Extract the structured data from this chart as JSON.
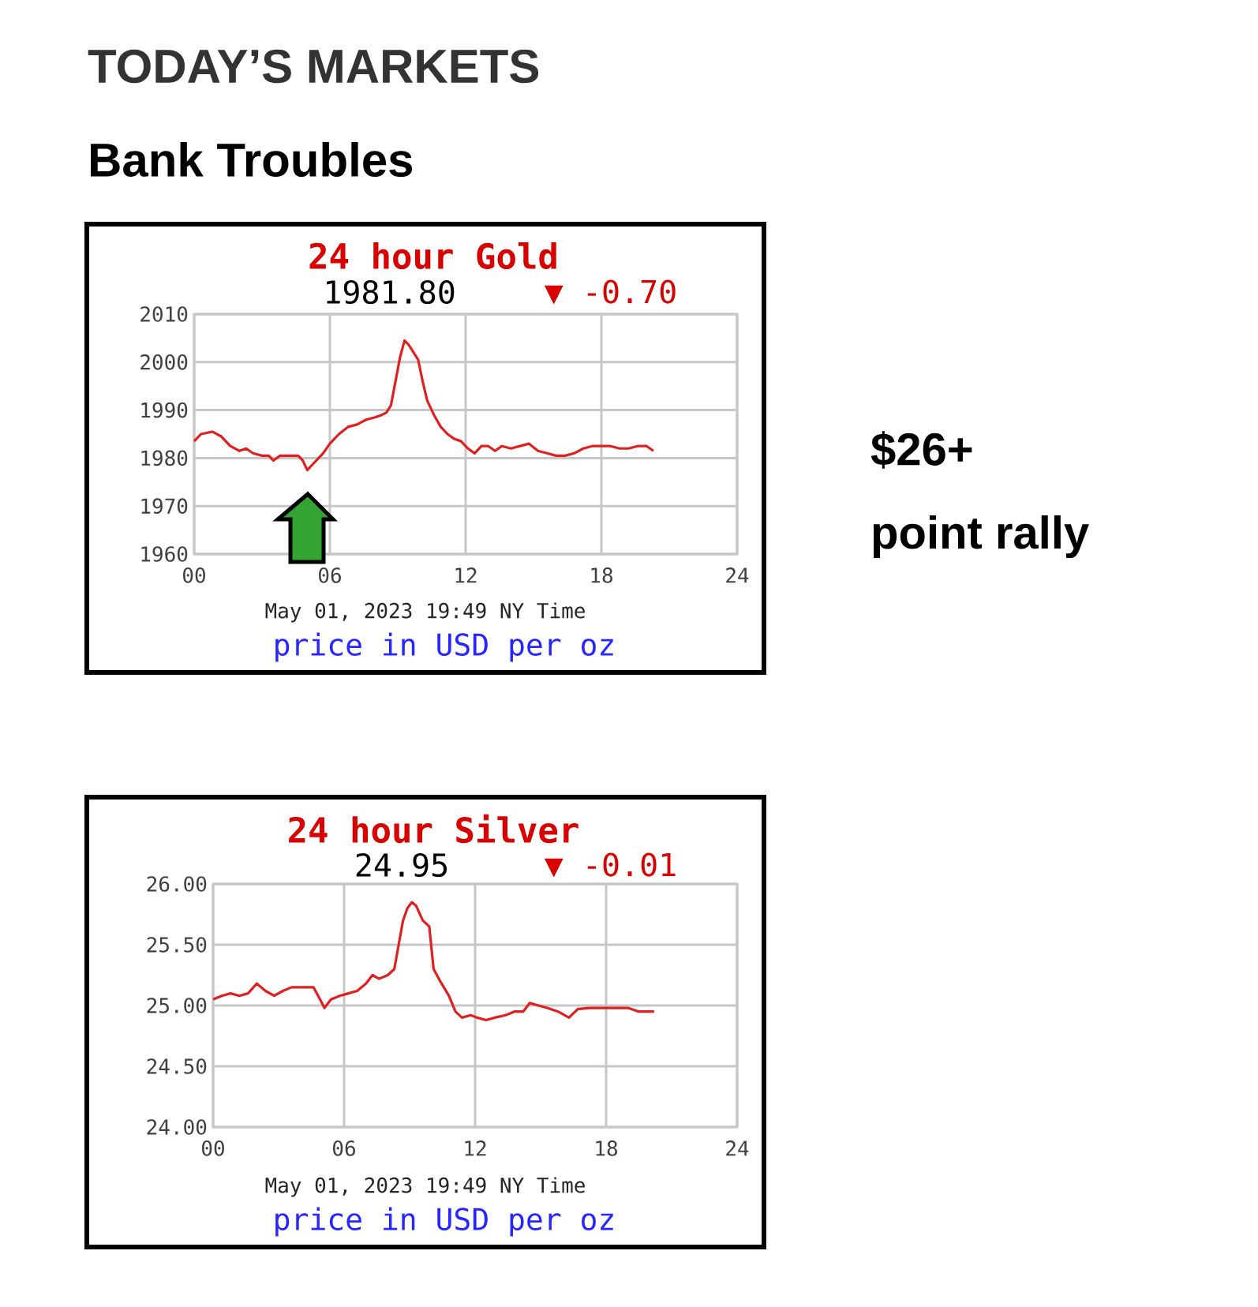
{
  "chart_data": [
    {
      "type": "line",
      "title": "24 hour Gold",
      "xlabel": "May 01, 2023 19:49 NY Time",
      "annotations": [
        "1981.80",
        "▼ -0.70",
        "price in USD per oz",
        "TODAY’S MARKETS",
        "Bank Troubles",
        "$26+",
        "point rally"
      ],
      "x": [
        0,
        0.3,
        0.8,
        1.2,
        1.6,
        2.0,
        2.3,
        2.6,
        3.0,
        3.3,
        3.5,
        3.8,
        4.2,
        4.6,
        4.8,
        5.0,
        5.3,
        5.7,
        6.0,
        6.4,
        6.8,
        7.2,
        7.6,
        8.0,
        8.3,
        8.5,
        8.7,
        8.9,
        9.1,
        9.3,
        9.5,
        9.7,
        9.9,
        10.1,
        10.3,
        10.6,
        10.9,
        11.2,
        11.5,
        11.8,
        12.1,
        12.4,
        12.7,
        13.0,
        13.3,
        13.6,
        14.0,
        14.4,
        14.8,
        15.2,
        15.6,
        16.0,
        16.4,
        16.8,
        17.2,
        17.6,
        18.0,
        18.4,
        18.8,
        19.2,
        19.6,
        20.0,
        20.3
      ],
      "series": [
        {
          "color": "#e02020",
          "values": [
            1983.5,
            1985,
            1985.5,
            1984.5,
            1982.5,
            1981.5,
            1982,
            1981,
            1980.5,
            1980.5,
            1979.5,
            1980.5,
            1980.5,
            1980.5,
            1979.5,
            1977.5,
            1979,
            1981,
            1983,
            1985,
            1986.5,
            1987,
            1988,
            1988.5,
            1989,
            1989.5,
            1991,
            1996,
            2001,
            2004.5,
            2003.5,
            2002,
            2000.5,
            1996,
            1992,
            1989,
            1986.5,
            1985,
            1984,
            1983.5,
            1982,
            1981,
            1982.5,
            1982.5,
            1981.5,
            1982.5,
            1982,
            1982.5,
            1983,
            1981.5,
            1981,
            1980.5,
            1980.5,
            1981,
            1982,
            1982.5,
            1982.5,
            1982.5,
            1982,
            1982,
            1982.5,
            1982.5,
            1981.5
          ]
        }
      ],
      "xlim": [
        0,
        24
      ],
      "xticks": [
        {
          "value": 0,
          "label": "00"
        },
        {
          "value": 6,
          "label": "06"
        },
        {
          "value": 12,
          "label": "12"
        },
        {
          "value": 18,
          "label": "18"
        },
        {
          "value": 24,
          "label": "24"
        }
      ],
      "ylim": [
        1960,
        2010
      ],
      "yticks": [
        1960,
        1970,
        1980,
        1990,
        2000,
        2010
      ],
      "grid": true,
      "marker": "none",
      "line_style": "solid"
    },
    {
      "type": "line",
      "title": "24 hour Silver",
      "xlabel": "May 01, 2023 19:49 NY Time",
      "annotations": [
        "24.95",
        "▼ -0.01",
        "price in USD per oz"
      ],
      "x": [
        0,
        0.4,
        0.8,
        1.2,
        1.6,
        2.0,
        2.4,
        2.8,
        3.2,
        3.6,
        4.0,
        4.6,
        4.9,
        5.1,
        5.4,
        5.8,
        6.2,
        6.6,
        7.0,
        7.3,
        7.6,
        8.0,
        8.3,
        8.5,
        8.7,
        8.9,
        9.1,
        9.3,
        9.6,
        9.9,
        10.1,
        10.4,
        10.8,
        11.1,
        11.4,
        11.8,
        12.1,
        12.5,
        12.9,
        13.4,
        13.8,
        14.2,
        14.5,
        14.9,
        15.3,
        15.8,
        16.3,
        16.7,
        17.2,
        18.0,
        19.0,
        19.5,
        20.2
      ],
      "series": [
        {
          "color": "#e02020",
          "values": [
            25.05,
            25.08,
            25.1,
            25.08,
            25.1,
            25.18,
            25.12,
            25.08,
            25.12,
            25.15,
            25.15,
            25.15,
            25.05,
            24.98,
            25.05,
            25.08,
            25.1,
            25.12,
            25.18,
            25.25,
            25.22,
            25.25,
            25.3,
            25.5,
            25.7,
            25.8,
            25.85,
            25.82,
            25.7,
            25.65,
            25.3,
            25.2,
            25.08,
            24.95,
            24.9,
            24.92,
            24.9,
            24.88,
            24.9,
            24.92,
            24.95,
            24.95,
            25.02,
            25.0,
            24.98,
            24.95,
            24.9,
            24.97,
            24.98,
            24.98,
            24.98,
            24.95,
            24.95
          ]
        }
      ],
      "xlim": [
        0,
        24
      ],
      "xticks": [
        {
          "value": 0,
          "label": "00"
        },
        {
          "value": 6,
          "label": "06"
        },
        {
          "value": 12,
          "label": "12"
        },
        {
          "value": 18,
          "label": "18"
        },
        {
          "value": 24,
          "label": "24"
        }
      ],
      "ylim": [
        24,
        26
      ],
      "yticks": [
        {
          "value": 24,
          "label": "24.00"
        },
        {
          "value": 24.5,
          "label": "24.50"
        },
        {
          "value": 25,
          "label": "25.00"
        },
        {
          "value": 25.5,
          "label": "25.50"
        },
        {
          "value": 26,
          "label": "26.00"
        }
      ],
      "grid": true,
      "marker": "none",
      "line_style": "solid"
    }
  ]
}
